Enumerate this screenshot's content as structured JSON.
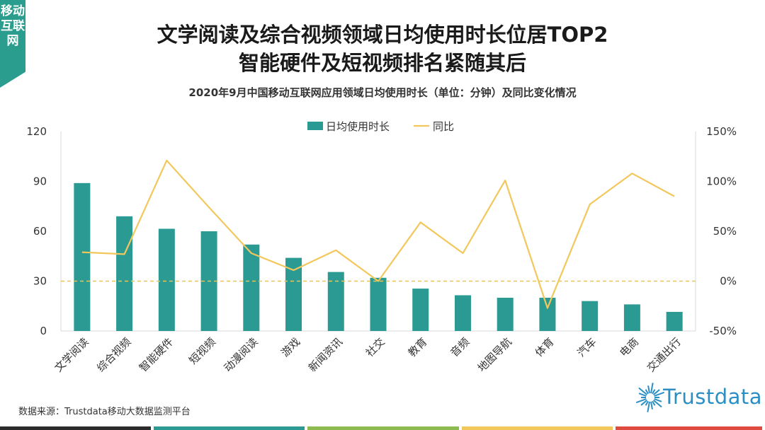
{
  "corner_tab": {
    "text": "移动互联网"
  },
  "title_line1": "文学阅读及综合视频领域日均使用时长位居TOP2",
  "title_line2": "智能硬件及短视频排名紧随其后",
  "subtitle": "2020年9月中国移动互联网应用领域日均使用时长（单位：分钟）及同比变化情况",
  "source": "数据来源：Trustdata移动大数据监测平台",
  "logo": {
    "text": "Trustdata"
  },
  "colors": {
    "bar": "#2a9a93",
    "line": "#f2c75c",
    "zero_line": "#e8c25a",
    "logo": "#2b8fc4",
    "bottom_bar": [
      "#2b2b2b",
      "#2a9a93",
      "#8dbb4f",
      "#f2c75c",
      "#e04b3f"
    ]
  },
  "chart_data": {
    "type": "bar",
    "categories": [
      "文学阅读",
      "综合视频",
      "智能硬件",
      "短视频",
      "动漫阅读",
      "游戏",
      "新闻资讯",
      "社交",
      "教育",
      "音频",
      "地图导航",
      "体育",
      "汽车",
      "电商",
      "交通出行"
    ],
    "series": [
      {
        "name": "日均使用时长",
        "type": "bar",
        "axis": "left",
        "values": [
          89,
          69,
          61.5,
          60,
          52,
          44,
          35.5,
          32,
          25.5,
          21.5,
          20,
          20,
          18,
          16,
          11.5
        ]
      },
      {
        "name": "同比",
        "type": "line",
        "axis": "right",
        "unit": "%",
        "values": [
          29,
          27,
          121,
          74,
          28,
          11,
          31,
          0,
          59,
          28,
          101,
          -27,
          77,
          108,
          85
        ]
      }
    ],
    "left_axis": {
      "min": 0,
      "max": 120,
      "ticks": [
        "0",
        "30",
        "60",
        "90",
        "120"
      ],
      "tick_values": [
        0,
        30,
        60,
        90,
        120
      ]
    },
    "right_axis": {
      "min": -50,
      "max": 150,
      "ticks": [
        "-50%",
        "0%",
        "50%",
        "100%",
        "150%"
      ],
      "tick_values": [
        -50,
        0,
        50,
        100,
        150
      ]
    },
    "legend": [
      "日均使用时长",
      "同比"
    ],
    "legend_position": "top-center"
  }
}
